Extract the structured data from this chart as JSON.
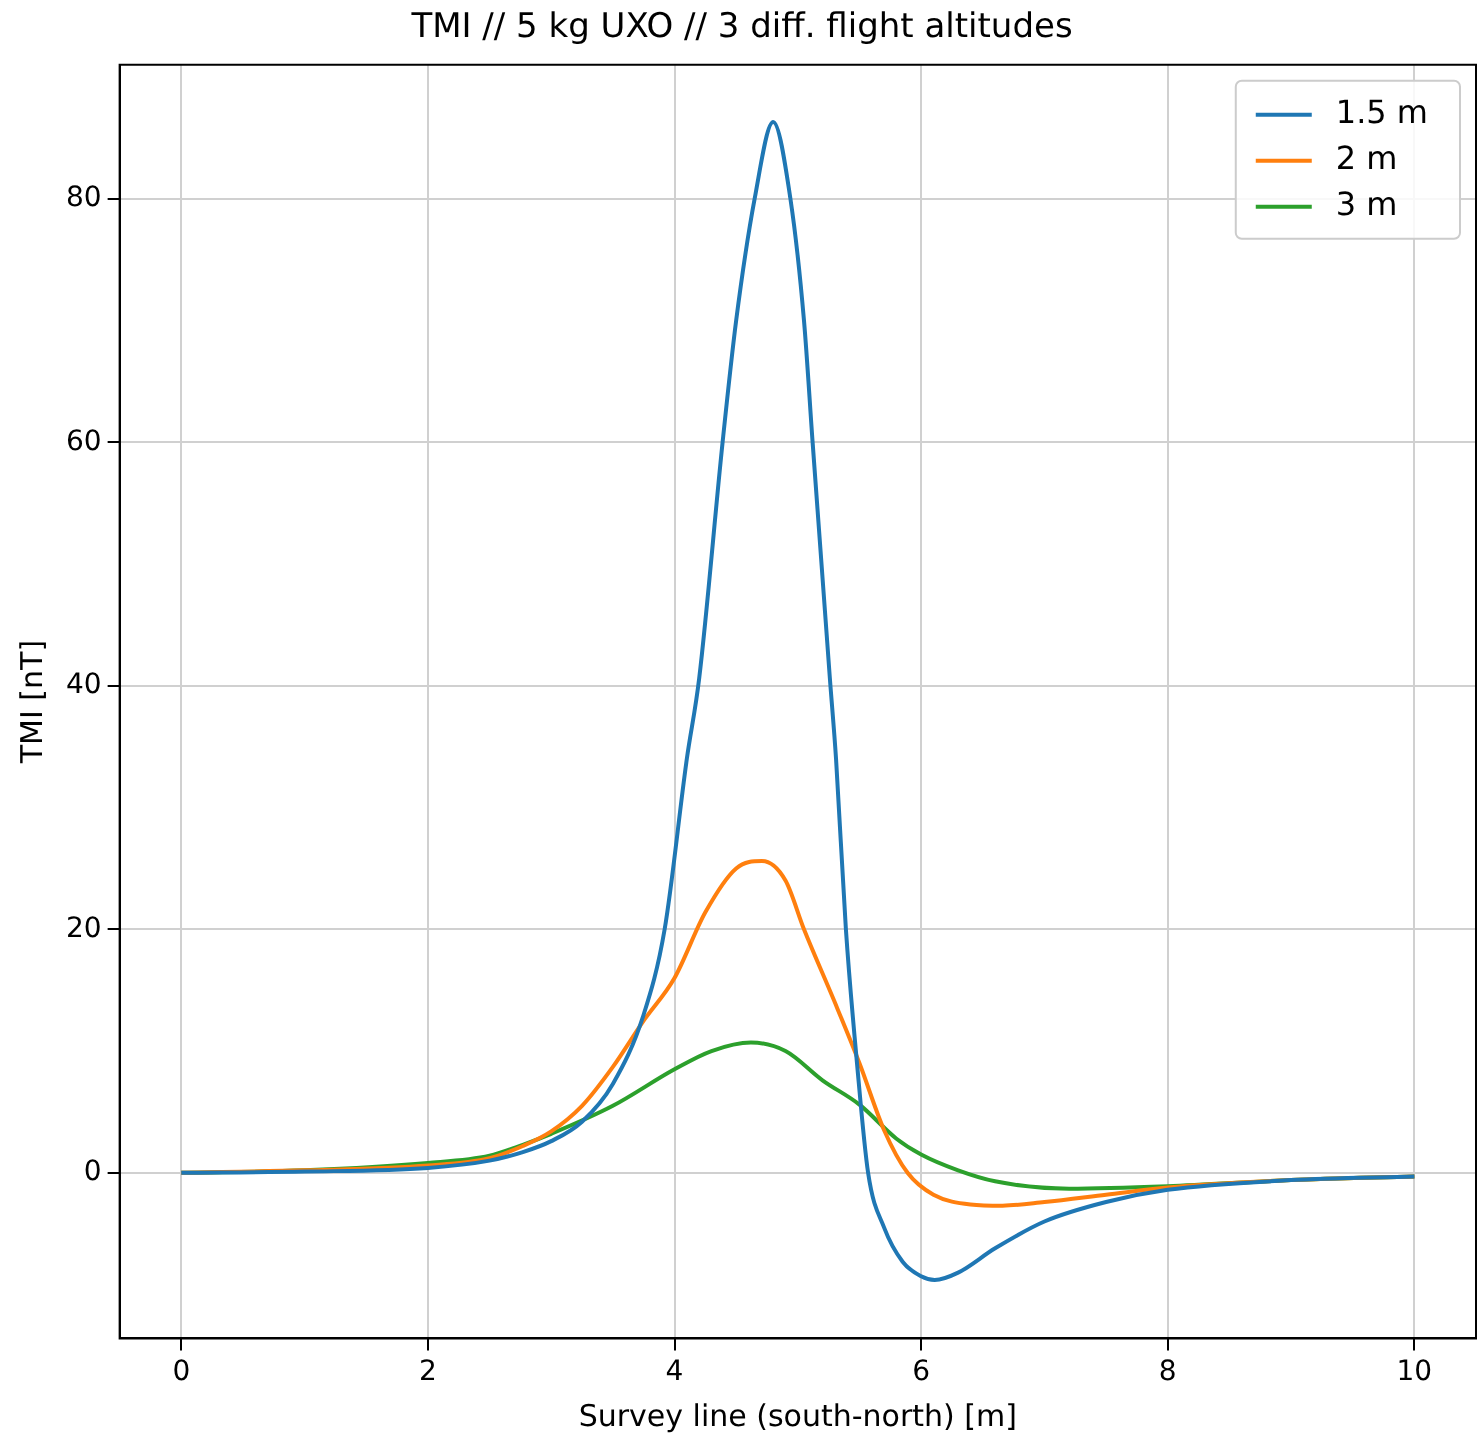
{
  "chart_data": {
    "type": "line",
    "title": "TMI // 5 kg UXO // 3 diff. flight altitudes",
    "xlabel": "Survey line (south-north) [m]",
    "ylabel": "TMI [nT]",
    "xlim": [
      -0.5,
      10.5
    ],
    "xticks": [
      0,
      2,
      4,
      6,
      8,
      10
    ],
    "ylim": [
      -13.6,
      91
    ],
    "yticks": [
      0,
      20,
      40,
      60,
      80
    ],
    "grid": true,
    "legend": "top right",
    "marker": "none",
    "line_style": "solid",
    "series": [
      {
        "name": "1.5 m",
        "color": "#1f77b4",
        "x": [
          0,
          1,
          2,
          2.5,
          2.77,
          3,
          3.25,
          3.5,
          3.75,
          3.92,
          4.1,
          4.2,
          4.39,
          4.5,
          4.65,
          4.8,
          4.94,
          5.05,
          5.12,
          5.26,
          5.31,
          5.39,
          5.48,
          5.57,
          5.7,
          5.85,
          6,
          6.11,
          6.3,
          6.6,
          7,
          7.5,
          8,
          9,
          10
        ],
        "values": [
          0,
          0.1,
          0.4,
          1,
          1.7,
          2.6,
          4.2,
          7.3,
          13,
          20,
          34,
          40.6,
          60,
          70,
          80,
          86.3,
          80,
          70,
          60,
          40.6,
          34,
          20,
          9,
          0,
          -4.5,
          -7.3,
          -8.5,
          -8.8,
          -8.2,
          -6.2,
          -4,
          -2.4,
          -1.4,
          -0.6,
          -0.3
        ]
      },
      {
        "name": "2 m",
        "color": "#ff7f0e",
        "x": [
          0,
          1,
          2,
          2.5,
          2.77,
          3,
          3.25,
          3.5,
          3.75,
          4,
          4.25,
          4.5,
          4.71,
          4.9,
          5.05,
          5.3,
          5.5,
          5.7,
          5.89,
          6.1,
          6.4,
          6.66,
          7,
          7.5,
          8,
          9,
          10
        ],
        "values": [
          0,
          0.2,
          0.6,
          1.2,
          2.2,
          3.4,
          5.5,
          8.7,
          12.5,
          16,
          21.4,
          25,
          25.6,
          24,
          20,
          14,
          9,
          3.5,
          0,
          -1.8,
          -2.6,
          -2.7,
          -2.4,
          -1.8,
          -1.2,
          -0.6,
          -0.3
        ]
      },
      {
        "name": "3 m",
        "color": "#2ca02c",
        "x": [
          0,
          1,
          2,
          2.5,
          2.77,
          3,
          3.5,
          4,
          4.3,
          4.62,
          4.9,
          5.2,
          5.5,
          5.8,
          6,
          6.3,
          6.6,
          7.2,
          8,
          9,
          10
        ],
        "values": [
          0,
          0.2,
          0.8,
          1.4,
          2.3,
          3.2,
          5.5,
          8.5,
          10,
          10.7,
          10,
          7.6,
          5.6,
          2.8,
          1.5,
          0.2,
          -0.7,
          -1.3,
          -1.1,
          -0.6,
          -0.3
        ]
      }
    ]
  }
}
